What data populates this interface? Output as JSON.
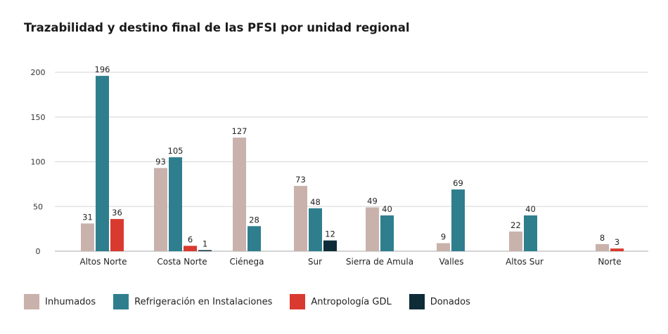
{
  "chart_data": {
    "type": "bar",
    "title": "Trazabilidad y destino final de las PFSI por unidad regional",
    "xlabel": "",
    "ylabel": "",
    "ylim": [
      0,
      200
    ],
    "yticks": [
      0,
      50,
      100,
      150,
      200
    ],
    "grid": true,
    "legend_position": "bottom",
    "categories": [
      "Altos Norte",
      "Costa Norte",
      "Ciénega",
      "Sur",
      "Sierra de Amula",
      "Valles",
      "Altos Sur",
      "Norte"
    ],
    "series": [
      {
        "name": "Inhumados",
        "color": "#c9b2ac",
        "values": [
          31,
          93,
          127,
          73,
          49,
          9,
          22,
          8
        ]
      },
      {
        "name": "Refrigeración en Instalaciones",
        "color": "#2e7e8e",
        "values": [
          196,
          105,
          28,
          48,
          40,
          69,
          40,
          null
        ]
      },
      {
        "name": "Antropología GDL",
        "color": "#d93a2f",
        "values": [
          36,
          6,
          null,
          null,
          null,
          null,
          null,
          3
        ]
      },
      {
        "name": "Donados",
        "color": "#0e2c38",
        "values": [
          null,
          1,
          null,
          12,
          null,
          null,
          null,
          null
        ]
      }
    ]
  }
}
